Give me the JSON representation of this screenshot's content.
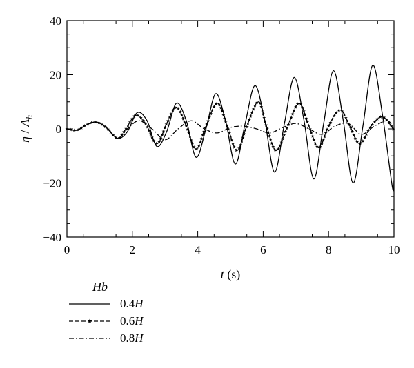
{
  "chart_data": {
    "type": "line",
    "xlabel": {
      "var": "t",
      "unit": " (s)"
    },
    "ylabel": {
      "var": "η",
      "sep": " / ",
      "sym": "A",
      "sub": "h"
    },
    "xlim": [
      0,
      10
    ],
    "ylim": [
      -40,
      40
    ],
    "xticks": [
      0,
      2,
      4,
      6,
      8,
      10
    ],
    "yticks": [
      -40,
      -20,
      0,
      20,
      40
    ],
    "xtick_labels": [
      "0",
      "2",
      "4",
      "6",
      "8",
      "10"
    ],
    "ytick_labels": [
      "−40",
      "−20",
      "0",
      "20",
      "40"
    ],
    "grid": false,
    "legend": {
      "placement": "bottom-left",
      "title": "Hb",
      "entries": [
        {
          "num": "0.4",
          "var": "H",
          "style": "solid"
        },
        {
          "num": "0.6",
          "var": "H",
          "style": "dashed-star"
        },
        {
          "num": "0.8",
          "var": "H",
          "style": "dash-dot"
        }
      ]
    },
    "series": [
      {
        "style": "solid",
        "x": [
          0,
          0.3,
          0.6,
          0.9,
          1.2,
          1.55,
          1.85,
          2.15,
          2.45,
          2.75,
          3.05,
          3.35,
          3.65,
          3.95,
          4.25,
          4.55,
          4.85,
          5.15,
          5.45,
          5.75,
          6.05,
          6.35,
          6.65,
          6.95,
          7.25,
          7.55,
          7.85,
          8.15,
          8.45,
          8.75,
          9.05,
          9.35,
          9.65,
          9.95,
          10
        ],
        "y": [
          0,
          -0.5,
          1.5,
          2.5,
          0.5,
          -3.5,
          -1,
          6,
          3,
          -6.5,
          -1,
          9.5,
          3,
          -10.5,
          0,
          13,
          3,
          -13,
          2,
          16,
          3,
          -16,
          2,
          19,
          3,
          -18.5,
          2,
          21.5,
          3,
          -20,
          1,
          23.5,
          5,
          -21.5,
          -19
        ]
      },
      {
        "style": "dashed-star",
        "x": [
          0,
          0.3,
          0.6,
          0.9,
          1.2,
          1.55,
          1.8,
          2.1,
          2.4,
          2.75,
          3.05,
          3.35,
          3.65,
          3.95,
          4.25,
          4.6,
          4.9,
          5.2,
          5.5,
          5.85,
          6.1,
          6.4,
          6.75,
          7.1,
          7.4,
          7.7,
          8.0,
          8.35,
          8.65,
          8.95,
          9.3,
          9.65,
          10
        ],
        "y": [
          0,
          -0.5,
          1.5,
          2.5,
          0.5,
          -3.5,
          0,
          5,
          2,
          -5.5,
          2,
          8,
          1,
          -7.5,
          1,
          9.5,
          1,
          -8,
          1,
          10,
          1,
          -8,
          1,
          9.5,
          1,
          -7,
          1,
          7,
          1,
          -5.5,
          1,
          4.5,
          -0.5
        ]
      },
      {
        "style": "dash-dot",
        "x": [
          0,
          0.3,
          0.6,
          0.9,
          1.2,
          1.55,
          1.85,
          2.2,
          2.6,
          3.0,
          3.4,
          3.8,
          4.2,
          4.6,
          5.0,
          5.4,
          5.8,
          6.2,
          6.6,
          7.0,
          7.4,
          7.8,
          8.2,
          8.6,
          9.0,
          9.4,
          9.8,
          10
        ],
        "y": [
          0,
          -0.5,
          1.5,
          2.5,
          0.5,
          -3.5,
          0,
          3,
          0,
          -4,
          0,
          3,
          0,
          -1.5,
          0.5,
          1,
          0,
          -1.5,
          0.5,
          2,
          0,
          -2,
          1,
          2,
          -2,
          1,
          3,
          0
        ]
      }
    ]
  }
}
